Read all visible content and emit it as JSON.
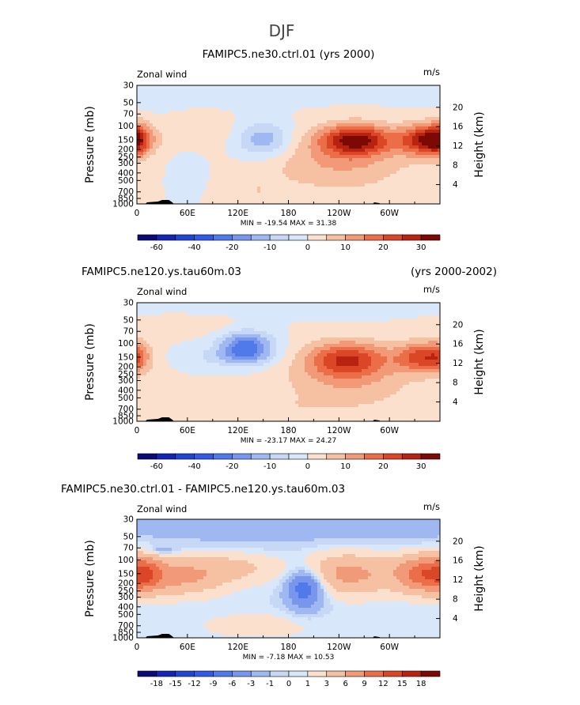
{
  "figure": {
    "title": "DJF"
  },
  "chart_data": [
    {
      "type": "heatmap",
      "title": "FAMIPC5.ne30.ctrl.01 (yrs 2000)",
      "title_left": "",
      "title_right": "",
      "corner_left": "Zonal wind",
      "corner_right": "m/s",
      "ylabel": "Pressure (mb)",
      "ylabel_right": "Height (km)",
      "x_ticks": [
        "0",
        "60E",
        "120E",
        "180",
        "120W",
        "60W"
      ],
      "x_tick_values": [
        0,
        60,
        120,
        180,
        240,
        300
      ],
      "xlim": [
        0,
        360
      ],
      "y_ticks": [
        "30",
        "50",
        "70",
        "100",
        "150",
        "200",
        "250",
        "300",
        "400",
        "500",
        "700",
        "850",
        "1000"
      ],
      "y_tick_values": [
        30,
        50,
        70,
        100,
        150,
        200,
        250,
        300,
        400,
        500,
        700,
        850,
        1000
      ],
      "ylim": [
        1000,
        30
      ],
      "height_ticks": [
        "4",
        "8",
        "12",
        "16",
        "20"
      ],
      "height_tick_values": [
        4,
        8,
        12,
        16,
        20
      ],
      "stats_text": "MIN = -19.54   MAX =  31.38",
      "min": -19.54,
      "max": 31.38,
      "colorbar_levels": [
        -70,
        -60,
        -50,
        -40,
        -30,
        -20,
        -15,
        -10,
        -5,
        0,
        5,
        10,
        15,
        20,
        25,
        30
      ],
      "colorbar_labels": [
        "-60",
        "-40",
        "-20",
        "-10",
        "0",
        "10",
        "20",
        "30"
      ],
      "colorbar_label_index": [
        1,
        3,
        5,
        7,
        9,
        11,
        13,
        15
      ],
      "features": [
        {
          "lon": 150,
          "p": 150,
          "value": -15,
          "spread_lon": 22,
          "spread_lnp": 0.35
        },
        {
          "lon": 260,
          "p": 150,
          "value": 30,
          "spread_lon": 30,
          "spread_lnp": 0.32
        },
        {
          "lon": 345,
          "p": 150,
          "value": 30,
          "spread_lon": 22,
          "spread_lnp": 0.32
        },
        {
          "lon": 0,
          "p": 150,
          "value": 12,
          "spread_lon": 10,
          "spread_lnp": 0.35
        },
        {
          "lon": 240,
          "p": 300,
          "value": 10,
          "spread_lon": 60,
          "spread_lnp": 0.6
        },
        {
          "lon": 80,
          "p": 120,
          "value": 3,
          "spread_lon": 40,
          "spread_lnp": 0.3
        },
        {
          "lon": 140,
          "p": 700,
          "value": 4,
          "spread_lon": 25,
          "spread_lnp": 0.3
        },
        {
          "lon": 20,
          "p": 50,
          "value": -3,
          "spread_lon": 15,
          "spread_lnp": 0.15
        },
        {
          "lon": 60,
          "p": 400,
          "value": -2,
          "spread_lon": 15,
          "spread_lnp": 0.4
        },
        {
          "lon": 200,
          "p": 30,
          "value": -1,
          "spread_lon": 200,
          "spread_lnp": 0.4
        }
      ]
    },
    {
      "type": "heatmap",
      "title": "",
      "title_left": "FAMIPC5.ne120.ys.tau60m.03",
      "title_right": "(yrs 2000-2002)",
      "corner_left": "Zonal wind",
      "corner_right": "m/s",
      "ylabel": "Pressure (mb)",
      "ylabel_right": "Height (km)",
      "x_ticks": [
        "0",
        "60E",
        "120E",
        "180",
        "120W",
        "60W"
      ],
      "x_tick_values": [
        0,
        60,
        120,
        180,
        240,
        300
      ],
      "xlim": [
        0,
        360
      ],
      "y_ticks": [
        "30",
        "50",
        "70",
        "100",
        "150",
        "200",
        "250",
        "300",
        "400",
        "500",
        "700",
        "850",
        "1000"
      ],
      "y_tick_values": [
        30,
        50,
        70,
        100,
        150,
        200,
        250,
        300,
        400,
        500,
        700,
        850,
        1000
      ],
      "ylim": [
        1000,
        30
      ],
      "height_ticks": [
        "4",
        "8",
        "12",
        "16",
        "20"
      ],
      "height_tick_values": [
        4,
        8,
        12,
        16,
        20
      ],
      "stats_text": "MIN = -23.17   MAX =  24.27",
      "min": -23.17,
      "max": 24.27,
      "colorbar_levels": [
        -70,
        -60,
        -50,
        -40,
        -30,
        -20,
        -15,
        -10,
        -5,
        0,
        5,
        10,
        15,
        20,
        25,
        30
      ],
      "colorbar_labels": [
        "-60",
        "-40",
        "-20",
        "-10",
        "0",
        "10",
        "20",
        "30"
      ],
      "colorbar_label_index": [
        1,
        3,
        5,
        7,
        9,
        11,
        13,
        15
      ],
      "features": [
        {
          "lon": 130,
          "p": 110,
          "value": -23,
          "spread_lon": 22,
          "spread_lnp": 0.32
        },
        {
          "lon": 110,
          "p": 150,
          "value": -6,
          "spread_lon": 40,
          "spread_lnp": 0.2
        },
        {
          "lon": 250,
          "p": 160,
          "value": 24,
          "spread_lon": 35,
          "spread_lnp": 0.38
        },
        {
          "lon": 340,
          "p": 150,
          "value": 22,
          "spread_lon": 22,
          "spread_lnp": 0.32
        },
        {
          "lon": 0,
          "p": 150,
          "value": 8,
          "spread_lon": 10,
          "spread_lnp": 0.35
        },
        {
          "lon": 250,
          "p": 350,
          "value": 8,
          "spread_lon": 60,
          "spread_lnp": 0.55
        },
        {
          "lon": 60,
          "p": 60,
          "value": 3,
          "spread_lon": 60,
          "spread_lnp": 0.2
        },
        {
          "lon": 150,
          "p": 700,
          "value": 3,
          "spread_lon": 60,
          "spread_lnp": 0.25
        },
        {
          "lon": 200,
          "p": 30,
          "value": -1,
          "spread_lon": 200,
          "spread_lnp": 0.4
        }
      ]
    },
    {
      "type": "heatmap",
      "title": "",
      "title_left": "FAMIPC5.ne30.ctrl.01 - FAMIPC5.ne120.ys.tau60m.03",
      "title_right": "",
      "corner_left": "Zonal wind",
      "corner_right": "m/s",
      "ylabel": "Pressure (mb)",
      "ylabel_right": "Height (km)",
      "x_ticks": [
        "0",
        "60E",
        "120E",
        "180",
        "120W",
        "60W"
      ],
      "x_tick_values": [
        0,
        60,
        120,
        180,
        240,
        300
      ],
      "xlim": [
        0,
        360
      ],
      "y_ticks": [
        "30",
        "50",
        "70",
        "100",
        "150",
        "200",
        "250",
        "300",
        "400",
        "500",
        "700",
        "850",
        "1000"
      ],
      "y_tick_values": [
        30,
        50,
        70,
        100,
        150,
        200,
        250,
        300,
        400,
        500,
        700,
        850,
        1000
      ],
      "ylim": [
        1000,
        30
      ],
      "height_ticks": [
        "4",
        "8",
        "12",
        "16",
        "20"
      ],
      "height_tick_values": [
        4,
        8,
        12,
        16,
        20
      ],
      "stats_text": "MIN = -7.18   MAX =  10.53",
      "min": -7.18,
      "max": 10.53,
      "colorbar_levels": [
        -21,
        -18,
        -15,
        -12,
        -9,
        -6,
        -3,
        -1,
        0,
        1,
        3,
        6,
        9,
        12,
        15,
        18
      ],
      "colorbar_labels": [
        "-18",
        "-15",
        "-12",
        "-9",
        "-6",
        "-3",
        "-1",
        "0",
        "1",
        "3",
        "6",
        "9",
        "12",
        "15",
        "18"
      ],
      "colorbar_label_index": [
        1,
        2,
        3,
        4,
        5,
        6,
        7,
        8,
        9,
        10,
        11,
        12,
        13,
        14,
        15
      ],
      "features": [
        {
          "lon": 200,
          "p": 220,
          "value": -7,
          "spread_lon": 14,
          "spread_lnp": 0.35
        },
        {
          "lon": 200,
          "p": 250,
          "value": -3,
          "spread_lon": 20,
          "spread_lnp": 0.55
        },
        {
          "lon": 250,
          "p": 150,
          "value": 7,
          "spread_lon": 45,
          "spread_lnp": 0.45
        },
        {
          "lon": 340,
          "p": 150,
          "value": 9,
          "spread_lon": 22,
          "spread_lnp": 0.4
        },
        {
          "lon": 50,
          "p": 160,
          "value": 7,
          "spread_lon": 40,
          "spread_lnp": 0.4
        },
        {
          "lon": 10,
          "p": 150,
          "value": 6,
          "spread_lon": 15,
          "spread_lnp": 0.4
        },
        {
          "lon": 120,
          "p": 120,
          "value": 3,
          "spread_lon": 30,
          "spread_lnp": 0.3
        },
        {
          "lon": 200,
          "p": 30,
          "value": -2.5,
          "spread_lon": 250,
          "spread_lnp": 0.55
        },
        {
          "lon": 150,
          "p": 700,
          "value": 2,
          "spread_lon": 60,
          "spread_lnp": 0.3
        },
        {
          "lon": 30,
          "p": 75,
          "value": -3,
          "spread_lon": 12,
          "spread_lnp": 0.08
        }
      ]
    }
  ],
  "colors": {
    "scale": [
      "#0a0a78",
      "#1424b4",
      "#1e46d2",
      "#325ae6",
      "#5079ea",
      "#7896ec",
      "#a0b8f2",
      "#c6d8f6",
      "#d8e8fa",
      "#fbe1cd",
      "#f6c0a2",
      "#f29a78",
      "#ec6e48",
      "#da4626",
      "#b82210",
      "#7c0a04"
    ],
    "topo": "#000000"
  }
}
